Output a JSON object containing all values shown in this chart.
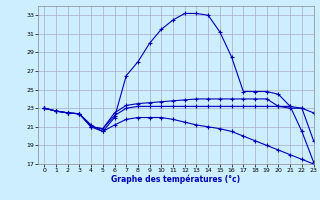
{
  "xlabel": "Graphe des températures (°c)",
  "bg_color": "#cceeff",
  "grid_color": "#aaaacc",
  "line_color": "#0000bb",
  "xlim": [
    -0.5,
    23
  ],
  "ylim": [
    17,
    34
  ],
  "yticks": [
    17,
    19,
    21,
    23,
    25,
    27,
    29,
    31,
    33
  ],
  "xticks": [
    0,
    1,
    2,
    3,
    4,
    5,
    6,
    7,
    8,
    9,
    10,
    11,
    12,
    13,
    14,
    15,
    16,
    17,
    18,
    19,
    20,
    21,
    22,
    23
  ],
  "curves": [
    {
      "x": [
        0,
        1,
        2,
        3,
        4,
        5,
        6,
        7,
        8,
        9,
        10,
        11,
        12,
        13,
        14,
        15,
        16,
        17,
        18,
        19,
        20,
        21,
        22,
        23
      ],
      "y": [
        23,
        22.7,
        22.5,
        22.4,
        21.0,
        20.5,
        22.0,
        26.5,
        28.0,
        30.0,
        31.5,
        32.5,
        33.2,
        33.2,
        33.0,
        31.2,
        28.5,
        24.8,
        24.8,
        24.8,
        24.5,
        23.2,
        20.5,
        17.2
      ]
    },
    {
      "x": [
        0,
        1,
        2,
        3,
        4,
        5,
        6,
        7,
        8,
        9,
        10,
        11,
        12,
        13,
        14,
        15,
        16,
        17,
        18,
        19,
        20,
        21,
        22,
        23
      ],
      "y": [
        23,
        22.7,
        22.5,
        22.4,
        21.0,
        20.8,
        22.5,
        23.3,
        23.5,
        23.6,
        23.7,
        23.8,
        23.9,
        24.0,
        24.0,
        24.0,
        24.0,
        24.0,
        24.0,
        24.0,
        23.2,
        23.2,
        23.0,
        19.5
      ]
    },
    {
      "x": [
        0,
        1,
        2,
        3,
        4,
        5,
        6,
        7,
        8,
        9,
        10,
        11,
        12,
        13,
        14,
        15,
        16,
        17,
        18,
        19,
        20,
        21,
        22,
        23
      ],
      "y": [
        23,
        22.7,
        22.5,
        22.4,
        21.0,
        20.8,
        22.2,
        23.0,
        23.2,
        23.2,
        23.2,
        23.2,
        23.2,
        23.2,
        23.2,
        23.2,
        23.2,
        23.2,
        23.2,
        23.2,
        23.2,
        23.0,
        23.0,
        22.5
      ]
    },
    {
      "x": [
        0,
        1,
        2,
        3,
        4,
        5,
        6,
        7,
        8,
        9,
        10,
        11,
        12,
        13,
        14,
        15,
        16,
        17,
        18,
        19,
        20,
        21,
        22,
        23
      ],
      "y": [
        23,
        22.7,
        22.5,
        22.4,
        21.2,
        20.5,
        21.2,
        21.8,
        22.0,
        22.0,
        22.0,
        21.8,
        21.5,
        21.2,
        21.0,
        20.8,
        20.5,
        20.0,
        19.5,
        19.0,
        18.5,
        18.0,
        17.5,
        17.0
      ]
    }
  ]
}
